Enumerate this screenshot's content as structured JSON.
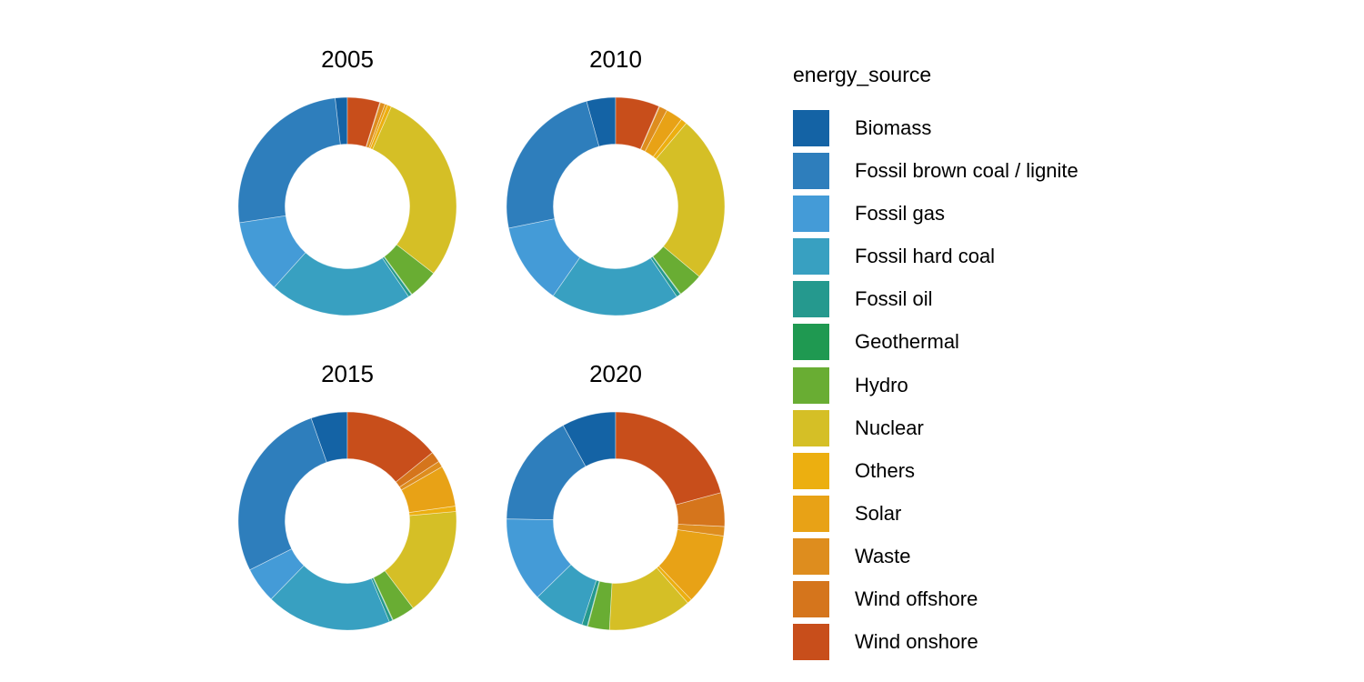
{
  "figure": {
    "background_color": "#ffffff",
    "text_color": "#000000"
  },
  "legend": {
    "title": "energy_source"
  },
  "chart_data": {
    "type": "pie",
    "subtype": "donut",
    "facets": "year",
    "legend_title": "energy_source",
    "legend_position": "right",
    "inner_radius_ratio": 0.571,
    "outer_radius_px": 120,
    "slice_direction": "counterclockwise-from-top-in-category-order",
    "categories": [
      "Biomass",
      "Fossil brown coal / lignite",
      "Fossil gas",
      "Fossil hard coal",
      "Fossil oil",
      "Geothermal",
      "Hydro",
      "Nuclear",
      "Others",
      "Solar",
      "Waste",
      "Wind offshore",
      "Wind onshore"
    ],
    "colors": [
      "#1463A5",
      "#2E7EBC",
      "#449BD7",
      "#38A0C1",
      "#25998E",
      "#1F9951",
      "#69AD33",
      "#D5BF26",
      "#ECAF10",
      "#E8A216",
      "#DE8D1E",
      "#D5751C",
      "#C84E1B"
    ],
    "units": "percent share",
    "series": [
      {
        "name": "2005",
        "values": [
          1.8,
          25.6,
          10.9,
          21.2,
          0.5,
          0.1,
          4.4,
          28.9,
          0.6,
          0.4,
          0.7,
          0.1,
          4.8
        ]
      },
      {
        "name": "2010",
        "values": [
          4.3,
          23.9,
          12.1,
          19.2,
          0.6,
          0.1,
          3.7,
          24.9,
          0.9,
          2.5,
          1.2,
          0.1,
          6.5
        ]
      },
      {
        "name": "2015",
        "values": [
          5.4,
          27.0,
          5.3,
          18.6,
          0.5,
          0.1,
          3.4,
          16.1,
          0.8,
          6.1,
          0.9,
          1.6,
          14.2
        ]
      },
      {
        "name": "2020",
        "values": [
          8.0,
          16.7,
          12.6,
          7.7,
          0.8,
          0.1,
          3.2,
          12.4,
          0.7,
          10.6,
          1.4,
          5.0,
          20.8
        ]
      }
    ]
  }
}
